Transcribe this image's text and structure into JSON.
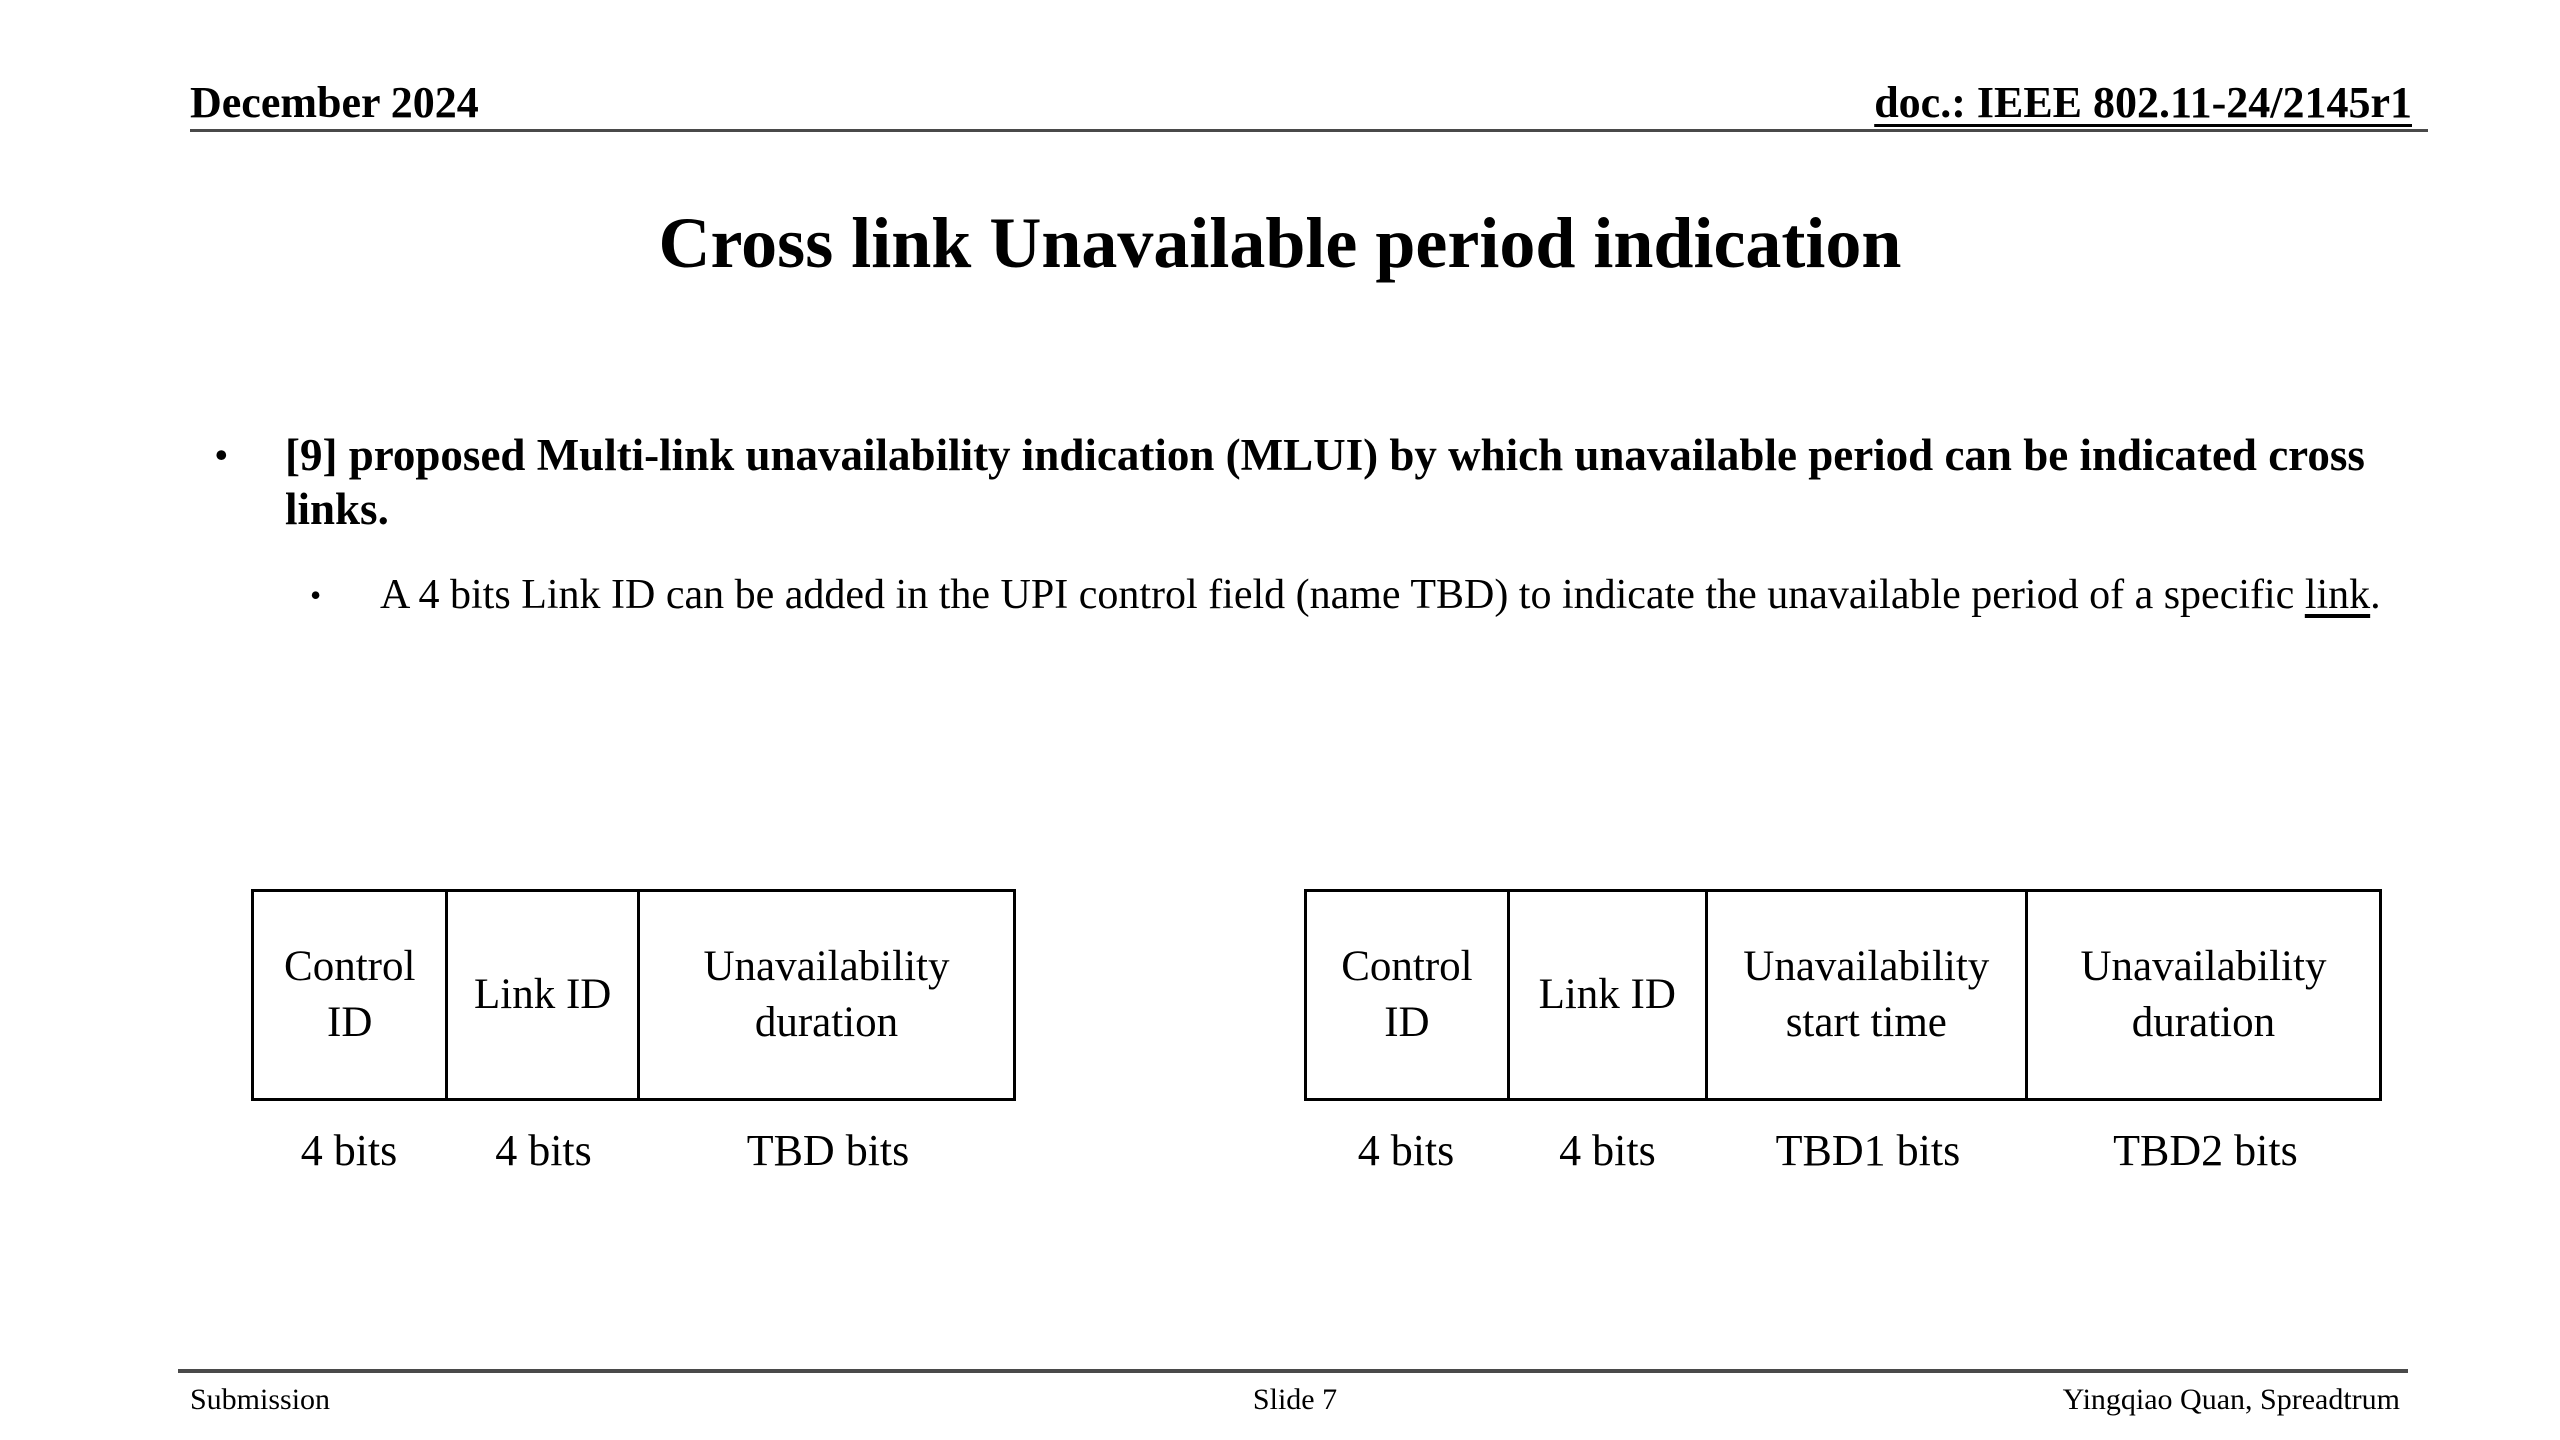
{
  "header": {
    "date": "December 2024",
    "doc": "doc.: IEEE 802.11-24/2145r1"
  },
  "title": "Cross link Unavailable period indication",
  "bullets": {
    "main": "[9] proposed Multi-link unavailability indication (MLUI) by which unavailable period can be indicated cross links.",
    "marker": "•",
    "sub_before": "A 4 bits Link ID can be added in the UPI control field (name TBD) to indicate the unavailable period of a specific ",
    "sub_link": "link",
    "sub_after": "."
  },
  "tables": [
    {
      "cells": [
        {
          "label": "Control ID",
          "bits": "4 bits"
        },
        {
          "label": "Link ID",
          "bits": "4 bits"
        },
        {
          "label": "Unavailability duration",
          "bits": "TBD bits"
        }
      ]
    },
    {
      "cells": [
        {
          "label": "Control ID",
          "bits": "4 bits"
        },
        {
          "label": "Link ID",
          "bits": "4 bits"
        },
        {
          "label": "Unavailability start time",
          "bits": "TBD1 bits"
        },
        {
          "label": "Unavailability duration",
          "bits": "TBD2 bits"
        }
      ]
    }
  ],
  "footer": {
    "left": "Submission",
    "center": "Slide 7",
    "right": "Yingqiao Quan, Spreadtrum"
  },
  "colors": {
    "text": "#000000",
    "rule": "#4a4a4a",
    "background": "#ffffff"
  }
}
